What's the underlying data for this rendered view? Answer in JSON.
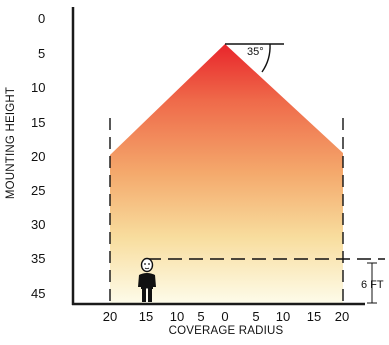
{
  "diagram": {
    "y_axis_title": "MOUNTING HEIGHT",
    "x_axis_title": "COVERAGE RADIUS",
    "y_ticks": [
      "0",
      "5",
      "10",
      "15",
      "20",
      "25",
      "30",
      "35",
      "45"
    ],
    "x_ticks": [
      "20",
      "15",
      "10",
      "5",
      "0",
      "5",
      "10",
      "15",
      "20"
    ],
    "angle_label": "35°",
    "person_height_label": "6 FT",
    "colors": {
      "cone_top": "#e8252b",
      "cone_mid": "#f4a06a",
      "cone_bottom": "#fdfbe6",
      "axis": "#1a1a1a"
    }
  }
}
